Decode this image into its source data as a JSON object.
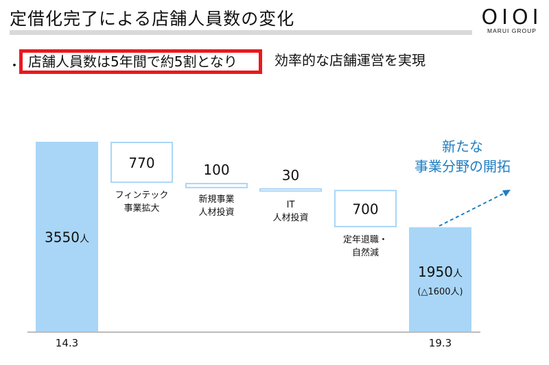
{
  "header": {
    "title": "定借化完了による店舗人員数の変化",
    "logo_mark": "OIOI",
    "logo_sub": "MARUI GROUP"
  },
  "headline": {
    "bullet": "・",
    "highlight": "店舗人員数は5年間で約5割となり",
    "rest": "効率的な店舗運営を実現"
  },
  "annotation": {
    "line1": "新たな",
    "line2": "事業分野の開拓"
  },
  "colors": {
    "bar_fill": "#a9d6f7",
    "step_border": "#a9d6f7",
    "annotation": "#1f7dc0",
    "highlight_border": "#e8191f"
  },
  "chart_data": {
    "type": "bar",
    "subtype": "waterfall",
    "categories": [
      "14.3",
      "フィンテック事業拡大",
      "新規事業人材投資",
      "IT人材投資",
      "定年退職・自然減",
      "19.3"
    ],
    "steps": [
      {
        "kind": "total",
        "value": 3550,
        "label": "3550",
        "unit": "人",
        "x_label": "14.3"
      },
      {
        "kind": "decrease",
        "value": 770,
        "label": "770",
        "caption": [
          "フィンテック",
          "事業拡大"
        ]
      },
      {
        "kind": "decrease",
        "value": 100,
        "label": "100",
        "caption": [
          "新規事業",
          "人材投資"
        ]
      },
      {
        "kind": "decrease",
        "value": 30,
        "label": "30",
        "caption": [
          "IT",
          "人材投資"
        ]
      },
      {
        "kind": "decrease",
        "value": 700,
        "label": "700",
        "caption": [
          "定年退職・",
          "自然減"
        ]
      },
      {
        "kind": "total",
        "value": 1950,
        "label": "1950",
        "unit": "人",
        "sub_label": "(△1600人)",
        "x_label": "19.3"
      }
    ],
    "ylim": [
      0,
      3550
    ]
  }
}
